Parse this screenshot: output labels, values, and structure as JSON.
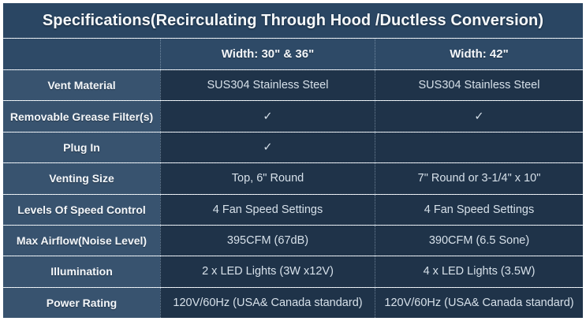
{
  "title": "Specifications(Recirculating Through Hood /Ductless Conversion)",
  "columns": {
    "corner": "",
    "col_a": "Width: 30\" & 36\"",
    "col_b": "Width: 42\""
  },
  "rows": [
    {
      "label": "Vent Material",
      "col_a": "SUS304 Stainless Steel",
      "col_b": "SUS304 Stainless Steel"
    },
    {
      "label": "Removable Grease Filter(s)",
      "col_a": "✓",
      "col_b": "✓"
    },
    {
      "label": "Plug In",
      "col_a": "✓",
      "col_b": ""
    },
    {
      "label": "Venting Size",
      "col_a": "Top, 6\" Round",
      "col_b": "7\" Round or 3-1/4\" x 10\""
    },
    {
      "label": "Levels Of Speed Control",
      "col_a": "4 Fan Speed Settings",
      "col_b": "4 Fan Speed Settings"
    },
    {
      "label": "Max Airflow(Noise Level)",
      "col_a": "395CFM (67dB)",
      "col_b": "390CFM (6.5 Sone)"
    },
    {
      "label": "Illumination",
      "col_a": "2 x  LED Lights (3W x12V)",
      "col_b": "4 x LED Lights (3.5W)"
    },
    {
      "label": "Power Rating",
      "col_a": "120V/60Hz (USA& Canada standard)",
      "col_b": "120V/60Hz (USA& Canada standard)"
    }
  ],
  "colors": {
    "frame_border": "#ffffff",
    "title_bg": "#2a4663",
    "header_bg": "#2e4a67",
    "label_bg": "#38536f",
    "data_bg": "#1f3349",
    "title_text": "#f6f9fb",
    "data_text": "#d6e0e9",
    "dotted_border": "#afc3d6"
  },
  "chart_data": {
    "type": "table",
    "title": "Specifications(Recirculating Through Hood /Ductless Conversion)",
    "columns": [
      "",
      "Width: 30\" & 36\"",
      "Width: 42\""
    ],
    "rows": [
      [
        "Vent Material",
        "SUS304 Stainless Steel",
        "SUS304 Stainless Steel"
      ],
      [
        "Removable Grease Filter(s)",
        "✓",
        "✓"
      ],
      [
        "Plug In",
        "✓",
        ""
      ],
      [
        "Venting Size",
        "Top, 6\" Round",
        "7\" Round or 3-1/4\" x 10\""
      ],
      [
        "Levels Of Speed Control",
        "4 Fan Speed Settings",
        "4 Fan Speed Settings"
      ],
      [
        "Max Airflow(Noise Level)",
        "395CFM (67dB)",
        "390CFM (6.5 Sone)"
      ],
      [
        "Illumination",
        "2 x  LED Lights (3W x12V)",
        "4 x LED Lights (3.5W)"
      ],
      [
        "Power Rating",
        "120V/60Hz (USA& Canada standard)",
        "120V/60Hz (USA& Canada standard)"
      ]
    ]
  }
}
